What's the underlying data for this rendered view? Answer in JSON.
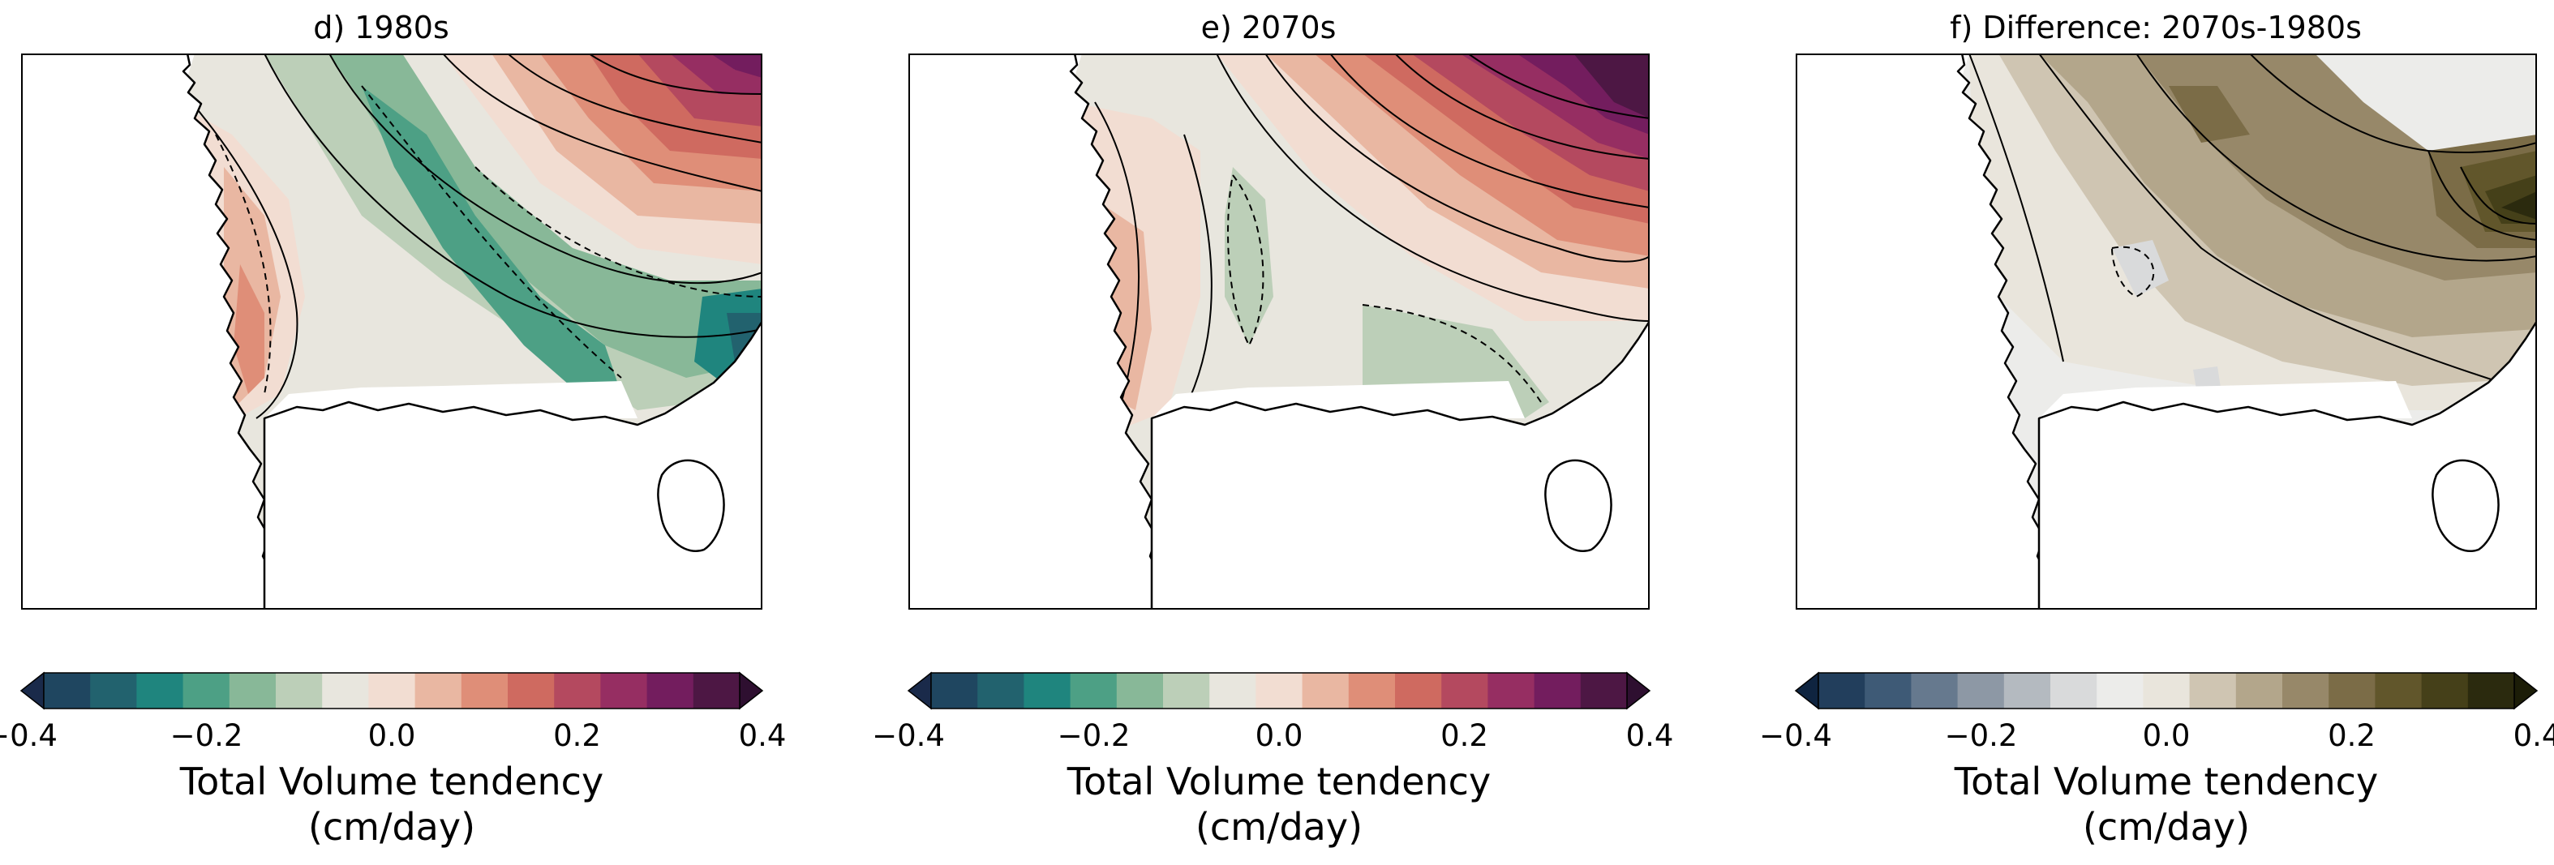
{
  "panels": [
    {
      "title": "d) 1980s",
      "field": "seq",
      "cmap": "seq",
      "colorbar": {
        "ticks": [
          "−0.4",
          "−0.2",
          "0.0",
          "0.2",
          "0.4"
        ],
        "label_line1": "Total Volume tendency",
        "label_line2": "(cm/day)"
      }
    },
    {
      "title": "e) 2070s",
      "field": "seq2",
      "cmap": "seq",
      "colorbar": {
        "ticks": [
          "−0.4",
          "−0.2",
          "0.0",
          "0.2",
          "0.4"
        ],
        "label_line1": "Total Volume tendency",
        "label_line2": "(cm/day)"
      }
    },
    {
      "title": "f) Difference: 2070s-1980s",
      "field": "diff",
      "cmap": "div",
      "colorbar": {
        "ticks": [
          "−0.4",
          "−0.2",
          "0.0",
          "0.2",
          "0.4"
        ],
        "label_line1": "Total Volume tendency",
        "label_line2": "(cm/day)"
      }
    }
  ],
  "colormaps": {
    "seq": [
      "#1a2a4a",
      "#1f4660",
      "#22626e",
      "#1f857e",
      "#4da085",
      "#88b898",
      "#bccfb8",
      "#e8e6de",
      "#f2ddd2",
      "#e9b7a2",
      "#df8e78",
      "#cf6a60",
      "#b4495f",
      "#962e62",
      "#731d5e",
      "#4d1744",
      "#2e0f30"
    ],
    "div": [
      "#0f2440",
      "#223e5c",
      "#3e5a76",
      "#66798e",
      "#8d98a5",
      "#b4bac0",
      "#d9dadb",
      "#ececea",
      "#e9e5dc",
      "#cfc5b2",
      "#b3a68b",
      "#978869",
      "#7b6c47",
      "#61562b",
      "#454019",
      "#2b2a0e",
      "#1c1d08"
    ]
  },
  "colors": {
    "coast": "#000000",
    "land": "#ffffff"
  }
}
